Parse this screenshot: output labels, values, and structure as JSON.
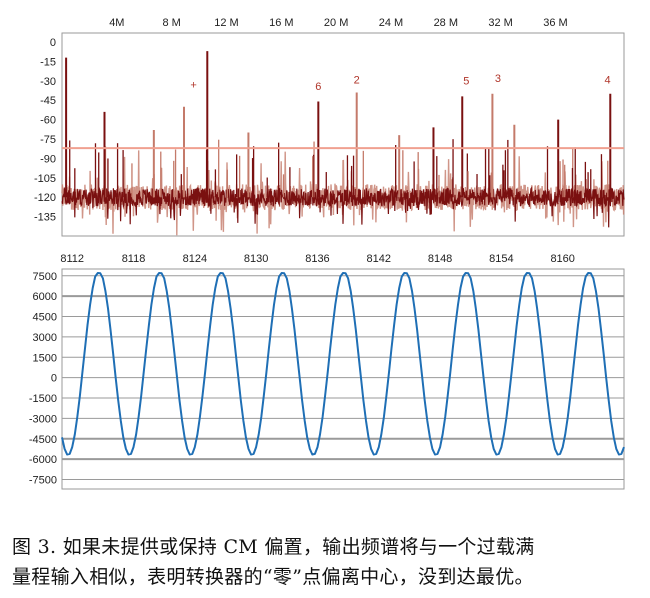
{
  "chart_data": [
    {
      "type": "line",
      "title": "",
      "xlabel": "",
      "ylabel": "",
      "x_tick_labels": [
        "4M",
        "8 M",
        "12 M",
        "16 M",
        "20 M",
        "24 M",
        "28 M",
        "32 M",
        "36 M"
      ],
      "x_ticks_MHz": [
        4,
        8,
        12,
        16,
        20,
        24,
        28,
        32,
        36
      ],
      "xlim": [
        0,
        41
      ],
      "y_ticks": [
        0,
        -15,
        -30,
        -45,
        -60,
        -75,
        -90,
        -105,
        -120,
        -135
      ],
      "ylim": [
        -150,
        7
      ],
      "reference_level": -82,
      "noise_floor": -120,
      "spurs": [
        {
          "x": 10.6,
          "y": -7
        },
        {
          "x": 8.9,
          "y": -50
        },
        {
          "x": 3.1,
          "y": -54
        },
        {
          "x": 6.7,
          "y": -68
        },
        {
          "x": 18.7,
          "y": -46
        },
        {
          "x": 21.5,
          "y": -39
        },
        {
          "x": 29.2,
          "y": -42
        },
        {
          "x": 31.4,
          "y": -40
        },
        {
          "x": 40.0,
          "y": -40
        },
        {
          "x": 33.0,
          "y": -64
        },
        {
          "x": 36.2,
          "y": -60
        },
        {
          "x": 13.6,
          "y": -70
        },
        {
          "x": 0.3,
          "y": -12
        },
        {
          "x": 24.6,
          "y": -72
        },
        {
          "x": 27.1,
          "y": -66
        }
      ],
      "annotations": [
        {
          "text": "+",
          "x": 9.6,
          "y": -36
        },
        {
          "text": "6",
          "x": 18.7,
          "y": -37
        },
        {
          "text": "2",
          "x": 21.5,
          "y": -32
        },
        {
          "text": "5",
          "x": 29.5,
          "y": -33
        },
        {
          "text": "3",
          "x": 31.8,
          "y": -31
        },
        {
          "text": "4",
          "x": 39.8,
          "y": -32
        }
      ],
      "colors": {
        "trace": "#7a1010",
        "trace_alt": "#c47a6a",
        "reference_line": "#f0a090",
        "frame": "#9a9a9a"
      }
    },
    {
      "type": "line",
      "title": "",
      "xlabel": "",
      "ylabel": "",
      "x_tick_labels": [
        "8112",
        "8118",
        "8124",
        "8130",
        "8136",
        "8142",
        "8148",
        "8154",
        "8160"
      ],
      "x_ticks": [
        8112,
        8118,
        8124,
        8130,
        8136,
        8142,
        8148,
        8154,
        8160
      ],
      "xlim": [
        8111,
        8166
      ],
      "y_ticks": [
        7500,
        6000,
        4500,
        3000,
        1500,
        0,
        -1500,
        -3000,
        -4500,
        -6000,
        -7500
      ],
      "ylim": [
        -8200,
        8000
      ],
      "grid": true,
      "series": [
        {
          "period_samples": 6,
          "peak": 7900,
          "trough": -5700,
          "x_start": 8111,
          "x_end": 8166
        }
      ],
      "colors": {
        "trace": "#1f6fb5",
        "grid": "#9a9a9a",
        "frame": "#9a9a9a"
      }
    }
  ],
  "caption": {
    "line1": "图 3. 如果未提供或保持 CM 偏置，输出频谱将与一个过载满",
    "line2": "量程输入相似，表明转换器的“零”点偏离中心，没到达最优。"
  }
}
